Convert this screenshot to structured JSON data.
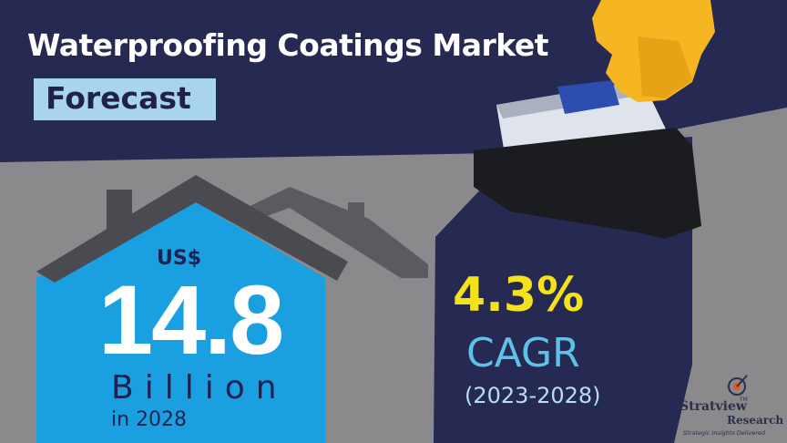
{
  "header": {
    "title": "Waterproofing Coatings Market",
    "subtitle": "Forecast"
  },
  "market_size": {
    "currency": "US$",
    "value": "14.8",
    "unit": "Billion",
    "year": "in 2028"
  },
  "growth": {
    "cagr_value": "4.3%",
    "cagr_label": "CAGR",
    "period": "(2023-2028)"
  },
  "brand": {
    "name_part1": "Stratview",
    "trademark": "TM",
    "name_part2": "Research",
    "tagline": "Strategic Insights Delivered"
  },
  "colors": {
    "navy": "#262a52",
    "gray": "#8a8a8c",
    "house_blue": "#1a9fe0",
    "roof": "#4a4b50",
    "cagr_yellow": "#f4e31a",
    "cagr_blue": "#5fc0e8",
    "subtitle_box": "#a9d4f0"
  }
}
